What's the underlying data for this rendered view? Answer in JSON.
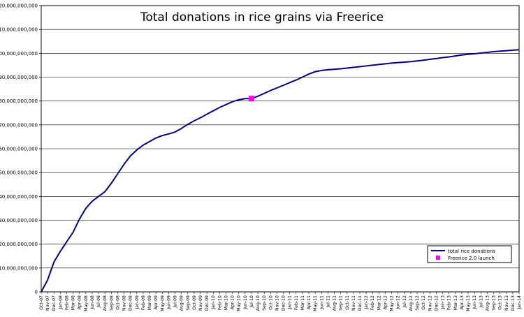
{
  "chart_data": {
    "type": "line",
    "title": "Total donations in rice grains via Freerice",
    "xlabel": "",
    "ylabel": "",
    "ylim": [
      0,
      120000000000
    ],
    "y_ticks": [
      0,
      10000000000,
      20000000000,
      30000000000,
      40000000000,
      50000000000,
      60000000000,
      70000000000,
      80000000000,
      90000000000,
      100000000000,
      110000000000,
      120000000000
    ],
    "y_tick_labels": [
      "0",
      "10,000,000,000",
      "20,000,000,000",
      "30,000,000,000",
      "40,000,000,000",
      "50,000,000,000",
      "60,000,000,000",
      "70,000,000,000",
      "80,000,000,000",
      "90,000,000,000",
      "100,000,000,000",
      "110,000,000,000",
      "120,000,000,000"
    ],
    "categories": [
      "Oct-07",
      "Nov-07",
      "Dec-07",
      "Jan-08",
      "Feb-08",
      "Mar-08",
      "Apr-08",
      "May-08",
      "Jun-08",
      "Jul-08",
      "Aug-08",
      "Sep-08",
      "Oct-08",
      "Nov-08",
      "Dec-08",
      "Jan-09",
      "Feb-09",
      "Mar-09",
      "Apr-09",
      "May-09",
      "Jun-09",
      "Jul-09",
      "Aug-09",
      "Sep-09",
      "Oct-09",
      "Nov-09",
      "Dec-09",
      "Jan-10",
      "Feb-10",
      "Mar-10",
      "Apr-10",
      "May-10",
      "Jun-10",
      "Jul-10",
      "Aug-10",
      "Sep-10",
      "Oct-10",
      "Nov-10",
      "Dec-10",
      "Jan-11",
      "Feb-11",
      "Mar-11",
      "Apr-11",
      "May-11",
      "Jun-11",
      "Jul-11",
      "Aug-11",
      "Sep-11",
      "Oct-11",
      "Nov-11",
      "Dec-11",
      "Jan-12",
      "Feb-12",
      "Mar-12",
      "Apr-12",
      "May-12",
      "Jun-12",
      "Jul-12",
      "Aug-12",
      "Sep-12",
      "Oct-12",
      "Nov-12",
      "Dec-12",
      "Jan-13",
      "Feb-13",
      "Mar-13",
      "Apr-13",
      "May-13",
      "Jun-13",
      "Jul-13",
      "Aug-13",
      "Sep-13",
      "Oct-13",
      "Nov-13",
      "Dec-13",
      "Jan-14"
    ],
    "series": [
      {
        "name": "total rice donations",
        "color": "#000080",
        "values": [
          0,
          5000000000,
          12500000000,
          17000000000,
          21000000000,
          25000000000,
          30500000000,
          35000000000,
          38000000000,
          40000000000,
          42000000000,
          45500000000,
          49500000000,
          53500000000,
          57000000000,
          59500000000,
          61500000000,
          63000000000,
          64500000000,
          65500000000,
          66200000000,
          67000000000,
          68500000000,
          70200000000,
          71700000000,
          73000000000,
          74500000000,
          75900000000,
          77300000000,
          78500000000,
          79700000000,
          80500000000,
          81000000000,
          81000000000,
          82000000000,
          83200000000,
          84400000000,
          85500000000,
          86600000000,
          87700000000,
          88800000000,
          90000000000,
          91300000000,
          92300000000,
          92800000000,
          93100000000,
          93300000000,
          93500000000,
          93800000000,
          94100000000,
          94400000000,
          94700000000,
          95000000000,
          95300000000,
          95600000000,
          95900000000,
          96100000000,
          96300000000,
          96500000000,
          96800000000,
          97100000000,
          97500000000,
          97800000000,
          98200000000,
          98500000000,
          98900000000,
          99300000000,
          99600000000,
          99800000000,
          100100000000,
          100400000000,
          100700000000,
          100900000000,
          101100000000,
          101300000000,
          101500000000
        ]
      }
    ],
    "marker": {
      "label": "Freerice 2.0 launch",
      "category": "Jul-10",
      "value": 81000000000,
      "color": "#ff00ff"
    },
    "legend": {
      "position": "bottom-right",
      "items": [
        {
          "label": "total rice donations",
          "kind": "line",
          "color": "#000080"
        },
        {
          "label": "Freerice 2.0 launch",
          "kind": "marker",
          "color": "#ff00ff"
        }
      ]
    },
    "grid": {
      "horizontal": true,
      "vertical": false
    }
  }
}
